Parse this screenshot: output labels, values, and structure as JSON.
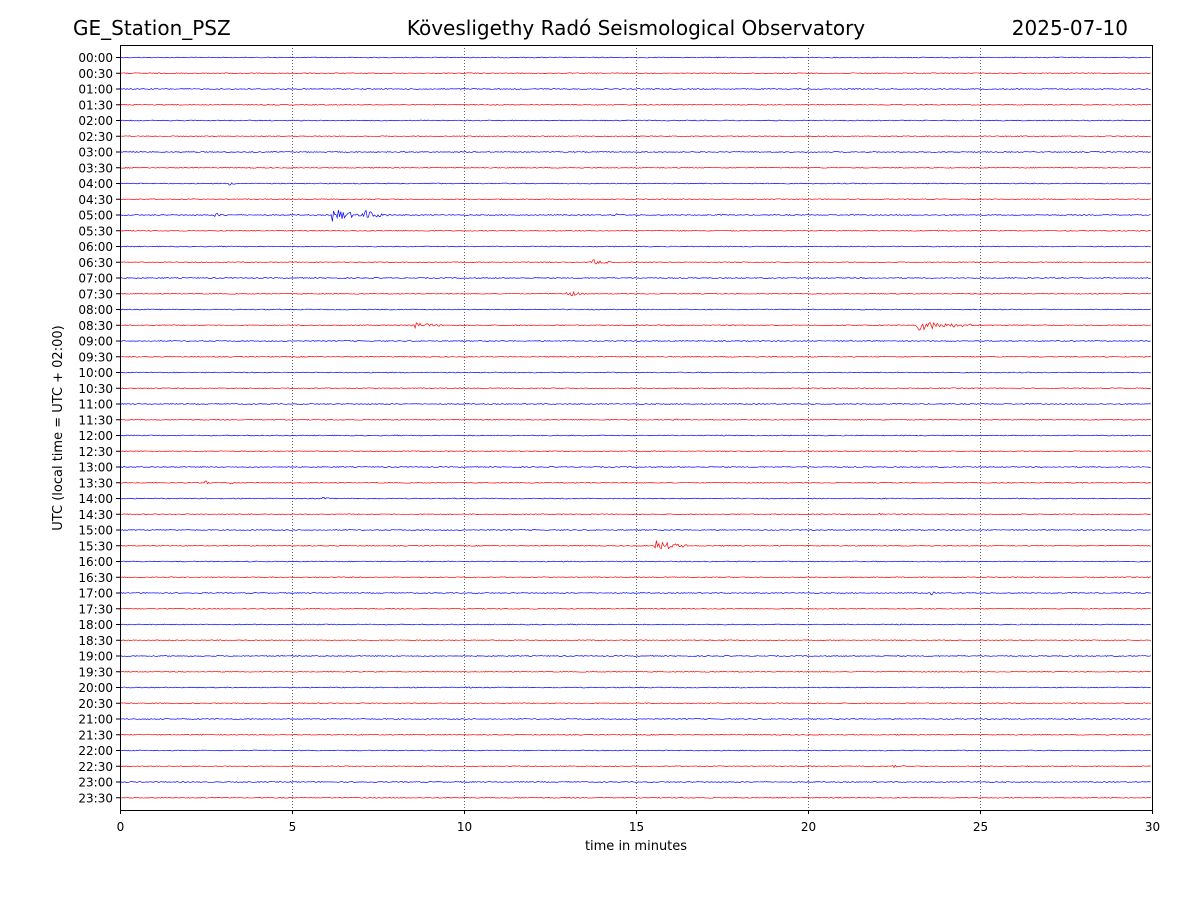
{
  "header": {
    "station": "GE_Station_PSZ",
    "observatory": "Kövesligethy Radó Seismological Observatory",
    "date": "2025-07-10"
  },
  "chart_data": {
    "type": "line",
    "title": "Kövesligethy Radó Seismological Observatory",
    "xlabel": "time in minutes",
    "ylabel": "UTC (local time = UTC + 02:00)",
    "xlim": [
      0,
      30
    ],
    "xticks": [
      0,
      5,
      10,
      15,
      20,
      25,
      30
    ],
    "xgrid": "dotted vertical lines at each x tick",
    "row_colors": [
      "#0000ff",
      "#ff0000"
    ],
    "rows": [
      {
        "label": "00:00",
        "color": "#0000ff",
        "events": []
      },
      {
        "label": "00:30",
        "color": "#ff0000",
        "events": []
      },
      {
        "label": "01:00",
        "color": "#0000ff",
        "events": []
      },
      {
        "label": "01:30",
        "color": "#ff0000",
        "events": []
      },
      {
        "label": "02:00",
        "color": "#0000ff",
        "events": []
      },
      {
        "label": "02:30",
        "color": "#ff0000",
        "events": []
      },
      {
        "label": "03:00",
        "color": "#0000ff",
        "events": []
      },
      {
        "label": "03:30",
        "color": "#ff0000",
        "events": []
      },
      {
        "label": "04:00",
        "color": "#0000ff",
        "events": [
          {
            "t": 3.2,
            "amp": 0.25,
            "dur": 0.2
          }
        ]
      },
      {
        "label": "04:30",
        "color": "#ff0000",
        "events": []
      },
      {
        "label": "05:00",
        "color": "#0000ff",
        "events": [
          {
            "t": 2.8,
            "amp": 0.3,
            "dur": 0.4
          },
          {
            "t": 6.2,
            "amp": 1.5,
            "dur": 0.9
          },
          {
            "t": 7.1,
            "amp": 1.0,
            "dur": 0.8
          },
          {
            "t": 14.4,
            "amp": 0.25,
            "dur": 0.3
          }
        ]
      },
      {
        "label": "05:30",
        "color": "#ff0000",
        "events": []
      },
      {
        "label": "06:00",
        "color": "#0000ff",
        "events": []
      },
      {
        "label": "06:30",
        "color": "#ff0000",
        "events": [
          {
            "t": 13.7,
            "amp": 0.6,
            "dur": 0.6
          }
        ]
      },
      {
        "label": "07:00",
        "color": "#0000ff",
        "events": []
      },
      {
        "label": "07:30",
        "color": "#ff0000",
        "events": [
          {
            "t": 13.0,
            "amp": 0.6,
            "dur": 0.6
          }
        ]
      },
      {
        "label": "08:00",
        "color": "#0000ff",
        "events": []
      },
      {
        "label": "08:30",
        "color": "#ff0000",
        "events": [
          {
            "t": 8.4,
            "amp": 0.7,
            "dur": 1.0
          },
          {
            "t": 23.2,
            "amp": 1.0,
            "dur": 1.8
          }
        ]
      },
      {
        "label": "09:00",
        "color": "#0000ff",
        "events": []
      },
      {
        "label": "09:30",
        "color": "#ff0000",
        "events": []
      },
      {
        "label": "10:00",
        "color": "#0000ff",
        "events": []
      },
      {
        "label": "10:30",
        "color": "#ff0000",
        "events": []
      },
      {
        "label": "11:00",
        "color": "#0000ff",
        "events": []
      },
      {
        "label": "11:30",
        "color": "#ff0000",
        "events": [
          {
            "t": 16.1,
            "amp": 0.2,
            "dur": 0.3
          }
        ]
      },
      {
        "label": "12:00",
        "color": "#0000ff",
        "events": []
      },
      {
        "label": "12:30",
        "color": "#ff0000",
        "events": []
      },
      {
        "label": "13:00",
        "color": "#0000ff",
        "events": []
      },
      {
        "label": "13:30",
        "color": "#ff0000",
        "events": [
          {
            "t": 2.5,
            "amp": 0.3,
            "dur": 0.2
          },
          {
            "t": 3.2,
            "amp": 0.25,
            "dur": 0.2
          }
        ]
      },
      {
        "label": "14:00",
        "color": "#0000ff",
        "events": [
          {
            "t": 5.9,
            "amp": 0.25,
            "dur": 0.2
          }
        ]
      },
      {
        "label": "14:30",
        "color": "#ff0000",
        "events": [
          {
            "t": 22.1,
            "amp": 0.2,
            "dur": 0.2
          }
        ]
      },
      {
        "label": "15:00",
        "color": "#0000ff",
        "events": []
      },
      {
        "label": "15:30",
        "color": "#ff0000",
        "events": [
          {
            "t": 15.6,
            "amp": 1.1,
            "dur": 1.0
          }
        ]
      },
      {
        "label": "16:00",
        "color": "#0000ff",
        "events": []
      },
      {
        "label": "16:30",
        "color": "#ff0000",
        "events": []
      },
      {
        "label": "17:00",
        "color": "#0000ff",
        "events": [
          {
            "t": 23.6,
            "amp": 0.3,
            "dur": 0.15
          }
        ]
      },
      {
        "label": "17:30",
        "color": "#ff0000",
        "events": []
      },
      {
        "label": "18:00",
        "color": "#0000ff",
        "events": []
      },
      {
        "label": "18:30",
        "color": "#ff0000",
        "events": []
      },
      {
        "label": "19:00",
        "color": "#0000ff",
        "events": []
      },
      {
        "label": "19:30",
        "color": "#ff0000",
        "events": []
      },
      {
        "label": "20:00",
        "color": "#0000ff",
        "events": [
          {
            "t": 10.0,
            "amp": 0.3,
            "dur": 0.2
          }
        ]
      },
      {
        "label": "20:30",
        "color": "#ff0000",
        "events": []
      },
      {
        "label": "21:00",
        "color": "#0000ff",
        "events": []
      },
      {
        "label": "21:30",
        "color": "#ff0000",
        "events": []
      },
      {
        "label": "22:00",
        "color": "#0000ff",
        "events": []
      },
      {
        "label": "22:30",
        "color": "#ff0000",
        "events": [
          {
            "t": 22.5,
            "amp": 0.15,
            "dur": 0.3
          }
        ]
      },
      {
        "label": "23:00",
        "color": "#0000ff",
        "events": []
      },
      {
        "label": "23:30",
        "color": "#ff0000",
        "events": []
      }
    ]
  }
}
